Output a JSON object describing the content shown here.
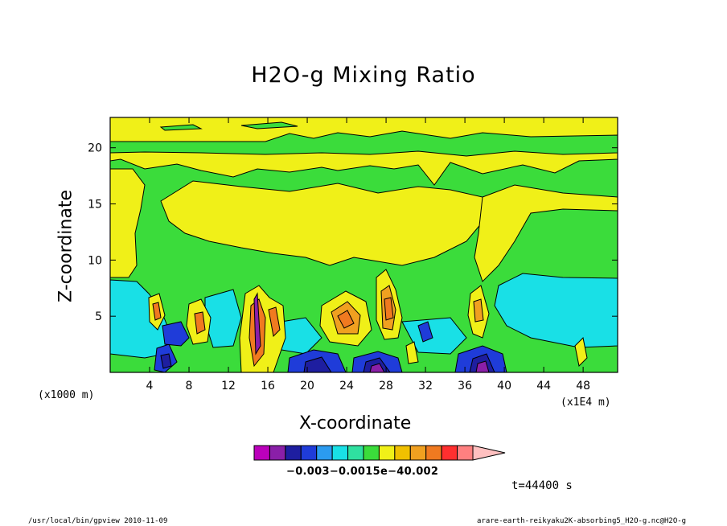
{
  "chart_data": {
    "type": "heatmap",
    "title": "H2O-g Mixing Ratio",
    "xlabel": "X-coordinate",
    "ylabel": "Z-coordinate",
    "x_unit_left": "(x1000 m)",
    "x_unit_right": "(x1E4 m)",
    "xlim": [
      0,
      51.5
    ],
    "ylim": [
      0,
      22.7
    ],
    "x_ticks": [
      4,
      8,
      12,
      16,
      20,
      24,
      28,
      32,
      36,
      40,
      44,
      48
    ],
    "y_ticks": [
      5,
      10,
      15,
      20
    ],
    "colorbar": {
      "colors": [
        "#bb00bb",
        "#8a1fa8",
        "#1e1ea0",
        "#1f3cd9",
        "#2b9bf0",
        "#19e0e6",
        "#2fe0a0",
        "#3bdc3b",
        "#f0f018",
        "#f0c000",
        "#f0a020",
        "#f07a20",
        "#ff2f2f",
        "#ff8080",
        "#ffc0c0"
      ],
      "label": "−0.003−0.0015e−40.002"
    },
    "levels": [
      "magenta",
      "purple",
      "navy",
      "blue",
      "skyblue",
      "cyan",
      "mint",
      "green",
      "yellow",
      "gold",
      "orange",
      "darkorange",
      "red",
      "salmon",
      "pink"
    ]
  },
  "time": "t=44400 s",
  "footer_left": "/usr/local/bin/gpview  2010-11-09",
  "footer_right": "arare-earth-reikyaku2K-absorbing5_H2O-g.nc@H2O-g"
}
